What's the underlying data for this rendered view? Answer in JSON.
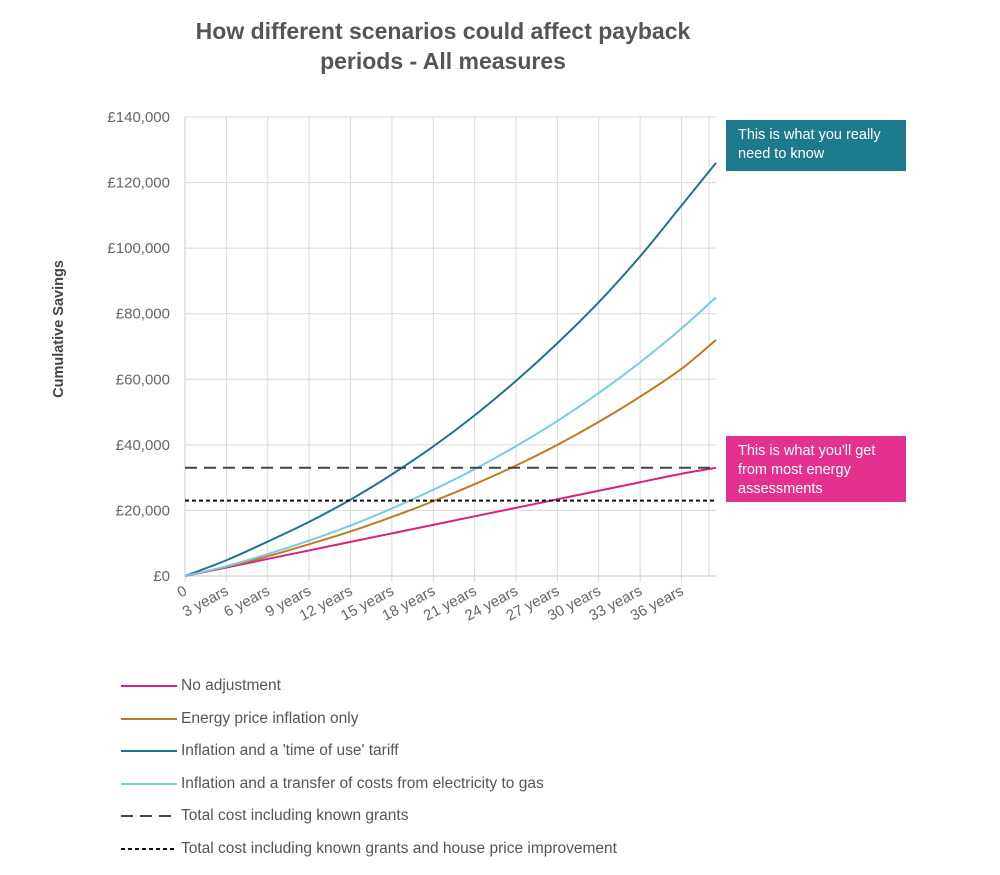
{
  "chart_data": {
    "type": "line",
    "title": [
      "How different scenarios could affect payback",
      "periods - All measures"
    ],
    "ylabel": "Cumulative Savings",
    "xlabel": "",
    "x_ticks": [
      "0",
      "3 years",
      "6 years",
      "9 years",
      "12 years",
      "15 years",
      "18 years",
      "21 years",
      "24 years",
      "27 years",
      "30 years",
      "33 years",
      "36 years"
    ],
    "x_unit": "years",
    "xlim": [
      0,
      38.5
    ],
    "ylim": [
      0,
      140000
    ],
    "y_ticks": [
      0,
      20000,
      40000,
      60000,
      80000,
      100000,
      120000,
      140000
    ],
    "y_tick_labels": [
      "£0",
      "£20,000",
      "£40,000",
      "£60,000",
      "£80,000",
      "£100,000",
      "£120,000",
      "£140,000"
    ],
    "grid": true,
    "legend_position": "bottom-left",
    "series": [
      {
        "name": "No adjustment",
        "color": "#d91f83",
        "style": "solid",
        "x": [
          0,
          3,
          6,
          9,
          12,
          15,
          18,
          21,
          24,
          27,
          30,
          33,
          36,
          38.5
        ],
        "y": [
          0,
          2600,
          5200,
          7800,
          10400,
          13000,
          15600,
          18200,
          20800,
          23400,
          26000,
          28600,
          31200,
          33000
        ]
      },
      {
        "name": "Energy price inflation only",
        "color": "#c07a22",
        "style": "solid",
        "x": [
          0,
          3,
          6,
          9,
          12,
          15,
          18,
          21,
          24,
          27,
          30,
          33,
          36,
          38.5
        ],
        "y": [
          0,
          2800,
          6000,
          9700,
          13600,
          18000,
          22800,
          28000,
          33700,
          40000,
          47000,
          54700,
          63200,
          72000
        ]
      },
      {
        "name": "Inflation and a 'time of use' tariff",
        "color": "#1e7589",
        "style": "solid",
        "x": [
          0,
          3,
          6,
          9,
          12,
          15,
          18,
          21,
          24,
          27,
          30,
          33,
          36,
          38.5
        ],
        "y": [
          0,
          4800,
          10500,
          16500,
          23300,
          31000,
          39500,
          49000,
          59500,
          71000,
          83500,
          97500,
          113000,
          126000
        ]
      },
      {
        "name": "Inflation and a transfer of costs from electricity to gas",
        "color": "#74cde0",
        "style": "solid",
        "x": [
          0,
          3,
          6,
          9,
          12,
          15,
          18,
          21,
          24,
          27,
          30,
          33,
          36,
          38.5
        ],
        "y": [
          0,
          3000,
          6700,
          10800,
          15400,
          20600,
          26300,
          32600,
          39600,
          47300,
          55800,
          65200,
          75500,
          85000
        ]
      },
      {
        "name": "Total cost including known grants",
        "color": "#3a4750",
        "style": "dashed",
        "x": [
          0,
          38.5
        ],
        "y": [
          33000,
          33000
        ]
      },
      {
        "name": "Total cost including known grants and house price improvement",
        "color": "#111111",
        "style": "dotted",
        "x": [
          0,
          38.5
        ],
        "y": [
          23000,
          23000
        ]
      }
    ]
  },
  "callouts": {
    "teal": {
      "text": "This is what you really need to know",
      "color": "#1d7a8c"
    },
    "pink": {
      "text": "This is what you'll get from most energy assessments",
      "color": "#e5318e"
    }
  }
}
